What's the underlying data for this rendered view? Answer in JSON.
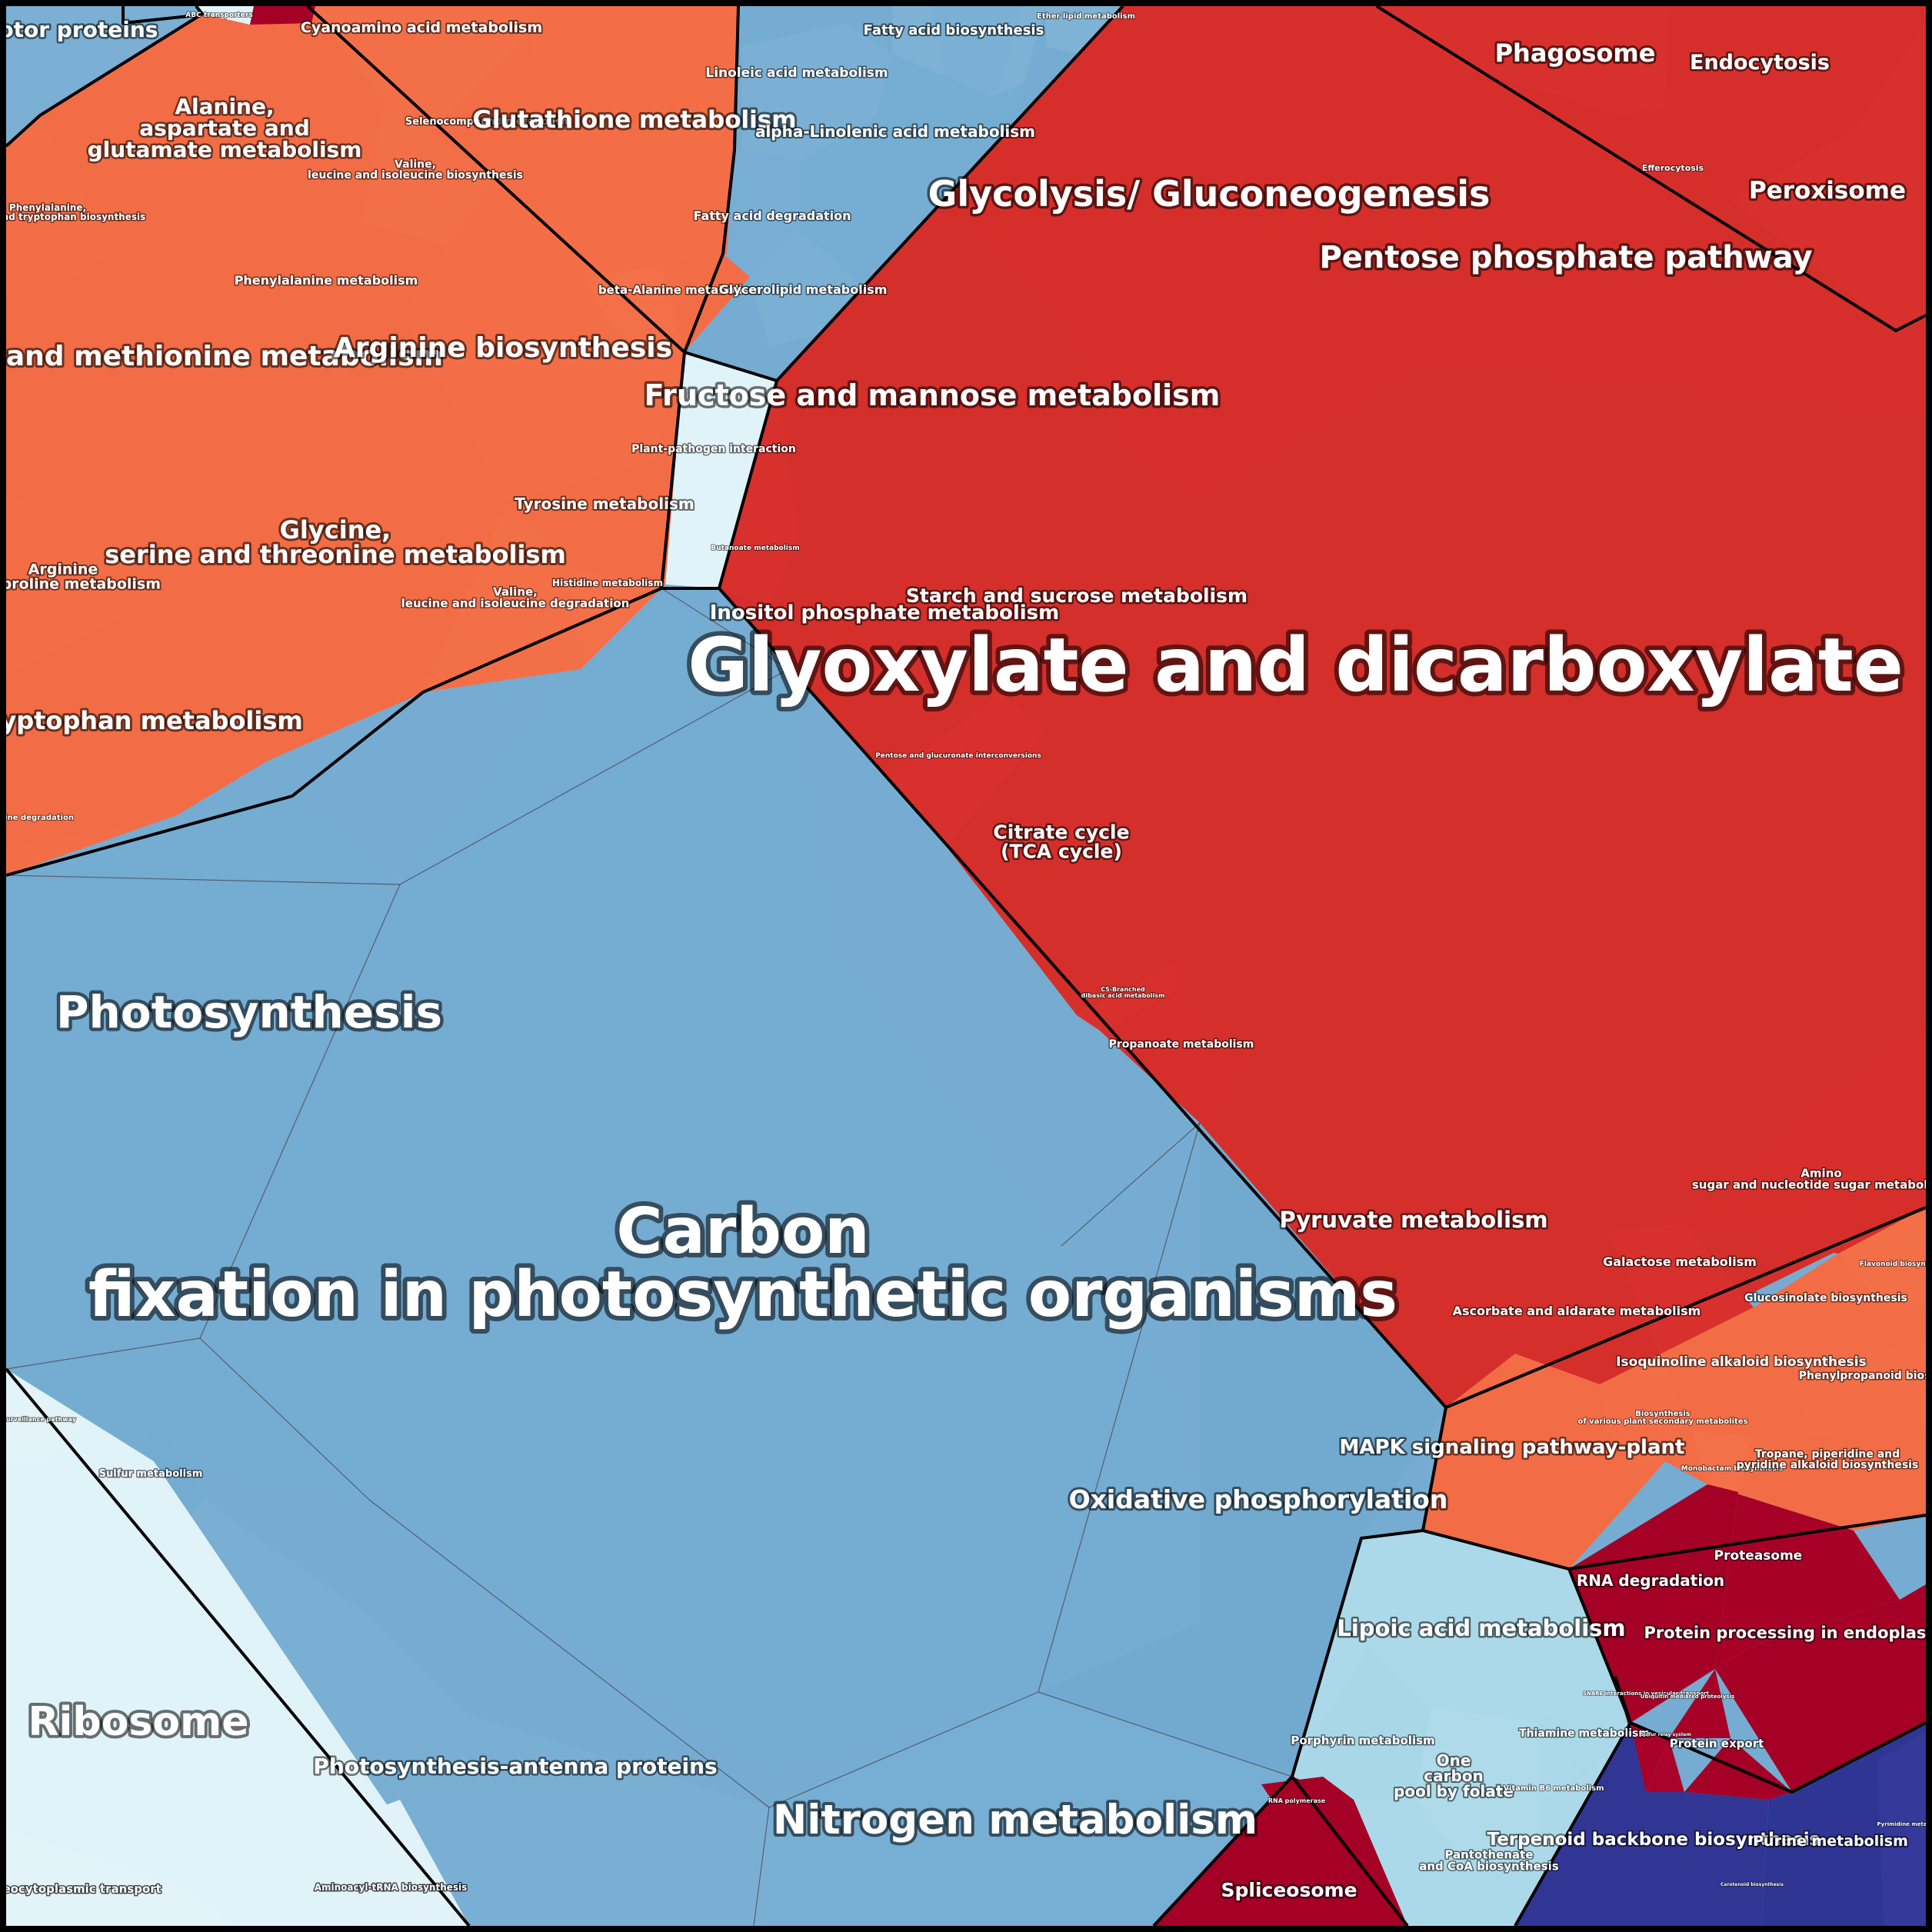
{
  "colors": {
    "blue_group": "#76acd1",
    "orange_group": "#f26d46",
    "red_group": "#d42f2a",
    "darkred_group": "#a50026",
    "navy_group": "#313695",
    "lightblue_group": "#abd9e9",
    "palest_group": "#e0f3f8",
    "border": "#000000"
  },
  "cells": {
    "motor_proteins": "Motor proteins",
    "abc_transporters": "ABC transporters",
    "cyanoamino": "Cyanoamino acid metabolism",
    "selenocompound": "Selenocompound metabolism",
    "glutathione": "Glutathione metabolism",
    "alanine": "Alanine, aspartate and glutamate metabolism",
    "valine_bio": "Valine, leucine and isoleucine biosynthesis",
    "phe_tyr_trp": "Phenylalanine, tyrosine and tryptophan biosynthesis",
    "phenylalanine": "Phenylalanine metabolism",
    "cysteine": "Cysteine and methionine metabolism",
    "arginine_bio": "Arginine biosynthesis",
    "beta_alanine": "beta-Alanine metabolism",
    "tyrosine": "Tyrosine metabolism",
    "glycine": "Glycine, serine and threonine metabolism",
    "arginine_proline": "Arginine and proline metabolism",
    "valine_deg": "Valine, leucine and isoleucine degradation",
    "histidine": "Histidine metabolism",
    "tryptophan": "Tryptophan metabolism",
    "lysine": "Lysine degradation",
    "fatty_acid_bio": "Fatty acid biosynthesis",
    "ether_lipid": "Ether lipid metabolism",
    "linoleic": "Linoleic acid metabolism",
    "alpha_linolenic": "alpha-Linolenic acid metabolism",
    "fatty_acid_deg": "Fatty acid degradation",
    "glycerolipid": "Glycerolipid metabolism",
    "plant_pathogen": "Plant-pathogen interaction",
    "glycolysis": "Glycolysis/ Gluconeogenesis",
    "phagosome": "Phagosome",
    "endocytosis": "Endocytosis",
    "efferocytosis": "Efferocytosis",
    "peroxisome": "Peroxisome",
    "pentose_phosphate": "Pentose phosphate pathway",
    "fructose": "Fructose and mannose metabolism",
    "butanoate": "Butanoate metabolism",
    "inositol": "Inositol phosphate metabolism",
    "starch": "Starch and sucrose metabolism",
    "pentose_glucuronate": "Pentose and glucuronate interconversions",
    "citrate": "Citrate cycle (TCA cycle)",
    "glyoxylate": "Glyoxylate and dicarboxylate metabolism",
    "c5_branched": "C5-Branched dibasic acid metabolism",
    "propanoate": "Propanoate metabolism",
    "photosynthesis": "Photosynthesis",
    "carbon_fixation": "Carbon fixation in photosynthetic organisms",
    "pyruvate": "Pyruvate metabolism",
    "amino_sugar": "Amino sugar and nucleotide sugar metabolism",
    "galactose": "Galactose metabolism",
    "ascorbate": "Ascorbate and aldarate metabolism",
    "flavonoid": "Flavonoid biosynthesis",
    "glucosinolate": "Glucosinolate biosynthesis",
    "isoquinoline": "Isoquinoline alkaloid biosynthesis",
    "phenylpropanoid": "Phenylpropanoid biosynthesis",
    "secondary_metabolites": "Biosynthesis of various plant secondary metabolites",
    "monobactam": "Monobactam biosynthesis",
    "tropane": "Tropane, piperidine and pyridine alkaloid biosynthesis",
    "mapk": "MAPK signaling pathway-plant",
    "oxidative": "Oxidative phosphorylation",
    "sulfur": "Sulfur metabolism",
    "mrna_surveillance": "mRNA surveillance pathway",
    "ribosome": "Ribosome",
    "nucleocytoplasmic": "Nucleocytoplasmic transport",
    "aminoacyl_trna": "Aminoacyl-tRNA biosynthesis",
    "antenna": "Photosynthesis-antenna proteins",
    "nitrogen": "Nitrogen metabolism",
    "lipoic": "Lipoic acid metabolism",
    "porphyrin": "Porphyrin metabolism",
    "one_carbon": "One carbon pool by folate",
    "thiamine": "Thiamine metabolism",
    "vitamin_b6": "Vitamin B6 metabolism",
    "pantothenate": "Pantothenate and CoA biosynthesis",
    "rna_polymerase": "RNA polymerase",
    "spliceosome": "Spliceosome",
    "rna_degradation": "RNA degradation",
    "proteasome": "Proteasome",
    "protein_processing": "Protein processing in endoplasmic reticulum",
    "snare": "SNARE interactions in vesicular transport",
    "ubiquitin": "Ubiquitin mediated proteolysis",
    "sulfur_relay": "Sulfur relay system",
    "protein_export": "Protein export",
    "terpenoid": "Terpenoid backbone biosynthesis",
    "purine": "Purine metabolism",
    "pyrimidine": "Pyrimidine metabolism",
    "carotenoid": "Carotenoid biosynthesis"
  }
}
